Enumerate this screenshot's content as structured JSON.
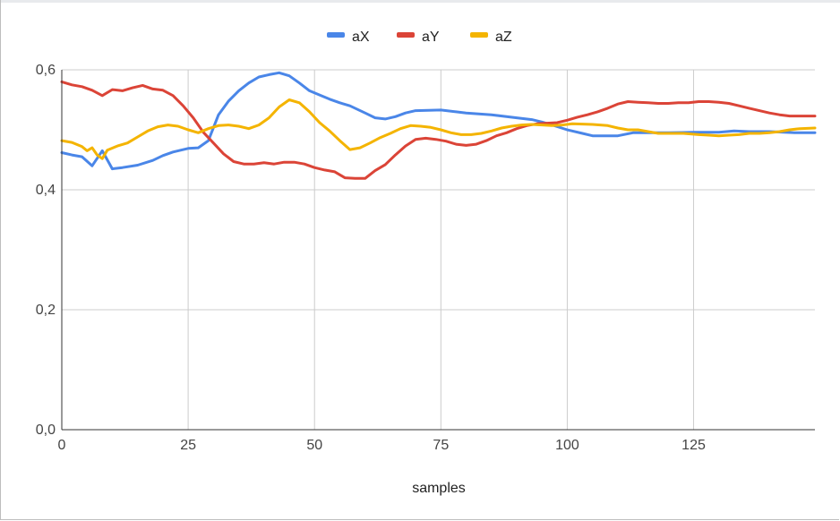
{
  "chart_data": {
    "type": "line",
    "title": "",
    "xlabel": "samples",
    "ylabel": "",
    "xlim": [
      0,
      149
    ],
    "ylim": [
      0,
      0.6
    ],
    "x_ticks": [
      0,
      25,
      50,
      75,
      100,
      125
    ],
    "x_tick_labels": [
      "0",
      "25",
      "50",
      "75",
      "100",
      "125"
    ],
    "y_ticks": [
      0,
      0.2,
      0.4,
      0.6
    ],
    "y_tick_labels": [
      "0,0",
      "0,2",
      "0,4",
      "0,6"
    ],
    "grid": true,
    "legend_position": "top",
    "series": [
      {
        "name": "aX",
        "color": "#4a86e8",
        "points": [
          [
            0,
            0.462
          ],
          [
            2,
            0.458
          ],
          [
            4,
            0.455
          ],
          [
            6,
            0.44
          ],
          [
            8,
            0.465
          ],
          [
            10,
            0.435
          ],
          [
            12,
            0.437
          ],
          [
            15,
            0.441
          ],
          [
            18,
            0.449
          ],
          [
            20,
            0.457
          ],
          [
            22,
            0.463
          ],
          [
            25,
            0.469
          ],
          [
            27,
            0.47
          ],
          [
            29,
            0.482
          ],
          [
            31,
            0.525
          ],
          [
            33,
            0.548
          ],
          [
            35,
            0.565
          ],
          [
            37,
            0.578
          ],
          [
            39,
            0.588
          ],
          [
            41,
            0.592
          ],
          [
            43,
            0.595
          ],
          [
            45,
            0.59
          ],
          [
            47,
            0.578
          ],
          [
            49,
            0.565
          ],
          [
            51,
            0.558
          ],
          [
            53,
            0.551
          ],
          [
            55,
            0.545
          ],
          [
            57,
            0.54
          ],
          [
            60,
            0.528
          ],
          [
            62,
            0.52
          ],
          [
            64,
            0.518
          ],
          [
            66,
            0.522
          ],
          [
            68,
            0.528
          ],
          [
            70,
            0.532
          ],
          [
            75,
            0.533
          ],
          [
            78,
            0.53
          ],
          [
            80,
            0.528
          ],
          [
            85,
            0.525
          ],
          [
            90,
            0.52
          ],
          [
            93,
            0.517
          ],
          [
            95,
            0.513
          ],
          [
            97,
            0.508
          ],
          [
            100,
            0.5
          ],
          [
            103,
            0.494
          ],
          [
            105,
            0.49
          ],
          [
            110,
            0.49
          ],
          [
            113,
            0.495
          ],
          [
            116,
            0.495
          ],
          [
            120,
            0.495
          ],
          [
            125,
            0.496
          ],
          [
            130,
            0.496
          ],
          [
            133,
            0.498
          ],
          [
            136,
            0.497
          ],
          [
            140,
            0.497
          ],
          [
            143,
            0.496
          ],
          [
            145,
            0.495
          ],
          [
            149,
            0.495
          ]
        ]
      },
      {
        "name": "aY",
        "color": "#db4437",
        "points": [
          [
            0,
            0.58
          ],
          [
            2,
            0.575
          ],
          [
            4,
            0.572
          ],
          [
            6,
            0.566
          ],
          [
            8,
            0.557
          ],
          [
            10,
            0.567
          ],
          [
            12,
            0.565
          ],
          [
            14,
            0.57
          ],
          [
            16,
            0.574
          ],
          [
            18,
            0.568
          ],
          [
            20,
            0.566
          ],
          [
            22,
            0.557
          ],
          [
            24,
            0.54
          ],
          [
            26,
            0.52
          ],
          [
            28,
            0.496
          ],
          [
            30,
            0.478
          ],
          [
            32,
            0.46
          ],
          [
            34,
            0.447
          ],
          [
            36,
            0.443
          ],
          [
            38,
            0.443
          ],
          [
            40,
            0.445
          ],
          [
            42,
            0.443
          ],
          [
            44,
            0.446
          ],
          [
            46,
            0.446
          ],
          [
            48,
            0.443
          ],
          [
            50,
            0.437
          ],
          [
            52,
            0.433
          ],
          [
            54,
            0.43
          ],
          [
            56,
            0.42
          ],
          [
            58,
            0.419
          ],
          [
            60,
            0.419
          ],
          [
            62,
            0.432
          ],
          [
            64,
            0.442
          ],
          [
            66,
            0.458
          ],
          [
            68,
            0.473
          ],
          [
            70,
            0.484
          ],
          [
            72,
            0.486
          ],
          [
            74,
            0.484
          ],
          [
            76,
            0.481
          ],
          [
            78,
            0.476
          ],
          [
            80,
            0.474
          ],
          [
            82,
            0.476
          ],
          [
            84,
            0.482
          ],
          [
            86,
            0.49
          ],
          [
            88,
            0.495
          ],
          [
            90,
            0.502
          ],
          [
            92,
            0.507
          ],
          [
            94,
            0.51
          ],
          [
            96,
            0.511
          ],
          [
            98,
            0.512
          ],
          [
            100,
            0.516
          ],
          [
            102,
            0.521
          ],
          [
            104,
            0.525
          ],
          [
            106,
            0.53
          ],
          [
            108,
            0.536
          ],
          [
            110,
            0.543
          ],
          [
            112,
            0.547
          ],
          [
            114,
            0.546
          ],
          [
            116,
            0.545
          ],
          [
            118,
            0.544
          ],
          [
            120,
            0.544
          ],
          [
            122,
            0.545
          ],
          [
            124,
            0.545
          ],
          [
            126,
            0.547
          ],
          [
            128,
            0.547
          ],
          [
            130,
            0.546
          ],
          [
            132,
            0.544
          ],
          [
            134,
            0.54
          ],
          [
            136,
            0.536
          ],
          [
            138,
            0.532
          ],
          [
            140,
            0.528
          ],
          [
            142,
            0.525
          ],
          [
            144,
            0.523
          ],
          [
            146,
            0.523
          ],
          [
            149,
            0.523
          ]
        ]
      },
      {
        "name": "aZ",
        "color": "#f4b400",
        "points": [
          [
            0,
            0.482
          ],
          [
            2,
            0.479
          ],
          [
            4,
            0.472
          ],
          [
            5,
            0.465
          ],
          [
            6,
            0.47
          ],
          [
            7,
            0.458
          ],
          [
            8,
            0.452
          ],
          [
            9,
            0.466
          ],
          [
            11,
            0.473
          ],
          [
            13,
            0.478
          ],
          [
            15,
            0.488
          ],
          [
            17,
            0.498
          ],
          [
            19,
            0.505
          ],
          [
            21,
            0.508
          ],
          [
            23,
            0.506
          ],
          [
            25,
            0.5
          ],
          [
            27,
            0.495
          ],
          [
            29,
            0.502
          ],
          [
            31,
            0.507
          ],
          [
            33,
            0.508
          ],
          [
            35,
            0.506
          ],
          [
            37,
            0.502
          ],
          [
            39,
            0.508
          ],
          [
            41,
            0.52
          ],
          [
            43,
            0.538
          ],
          [
            45,
            0.55
          ],
          [
            47,
            0.545
          ],
          [
            49,
            0.53
          ],
          [
            51,
            0.512
          ],
          [
            53,
            0.498
          ],
          [
            55,
            0.482
          ],
          [
            57,
            0.467
          ],
          [
            59,
            0.47
          ],
          [
            61,
            0.478
          ],
          [
            63,
            0.487
          ],
          [
            65,
            0.494
          ],
          [
            67,
            0.502
          ],
          [
            69,
            0.507
          ],
          [
            71,
            0.506
          ],
          [
            73,
            0.504
          ],
          [
            75,
            0.5
          ],
          [
            77,
            0.495
          ],
          [
            79,
            0.492
          ],
          [
            81,
            0.492
          ],
          [
            83,
            0.494
          ],
          [
            85,
            0.498
          ],
          [
            87,
            0.503
          ],
          [
            89,
            0.506
          ],
          [
            91,
            0.508
          ],
          [
            93,
            0.509
          ],
          [
            95,
            0.508
          ],
          [
            97,
            0.507
          ],
          [
            99,
            0.508
          ],
          [
            101,
            0.51
          ],
          [
            105,
            0.509
          ],
          [
            108,
            0.507
          ],
          [
            110,
            0.503
          ],
          [
            112,
            0.5
          ],
          [
            114,
            0.5
          ],
          [
            116,
            0.497
          ],
          [
            118,
            0.494
          ],
          [
            120,
            0.494
          ],
          [
            123,
            0.494
          ],
          [
            126,
            0.492
          ],
          [
            128,
            0.491
          ],
          [
            130,
            0.49
          ],
          [
            132,
            0.491
          ],
          [
            134,
            0.492
          ],
          [
            136,
            0.494
          ],
          [
            138,
            0.494
          ],
          [
            140,
            0.495
          ],
          [
            142,
            0.497
          ],
          [
            144,
            0.5
          ],
          [
            146,
            0.502
          ],
          [
            149,
            0.503
          ]
        ]
      }
    ]
  }
}
